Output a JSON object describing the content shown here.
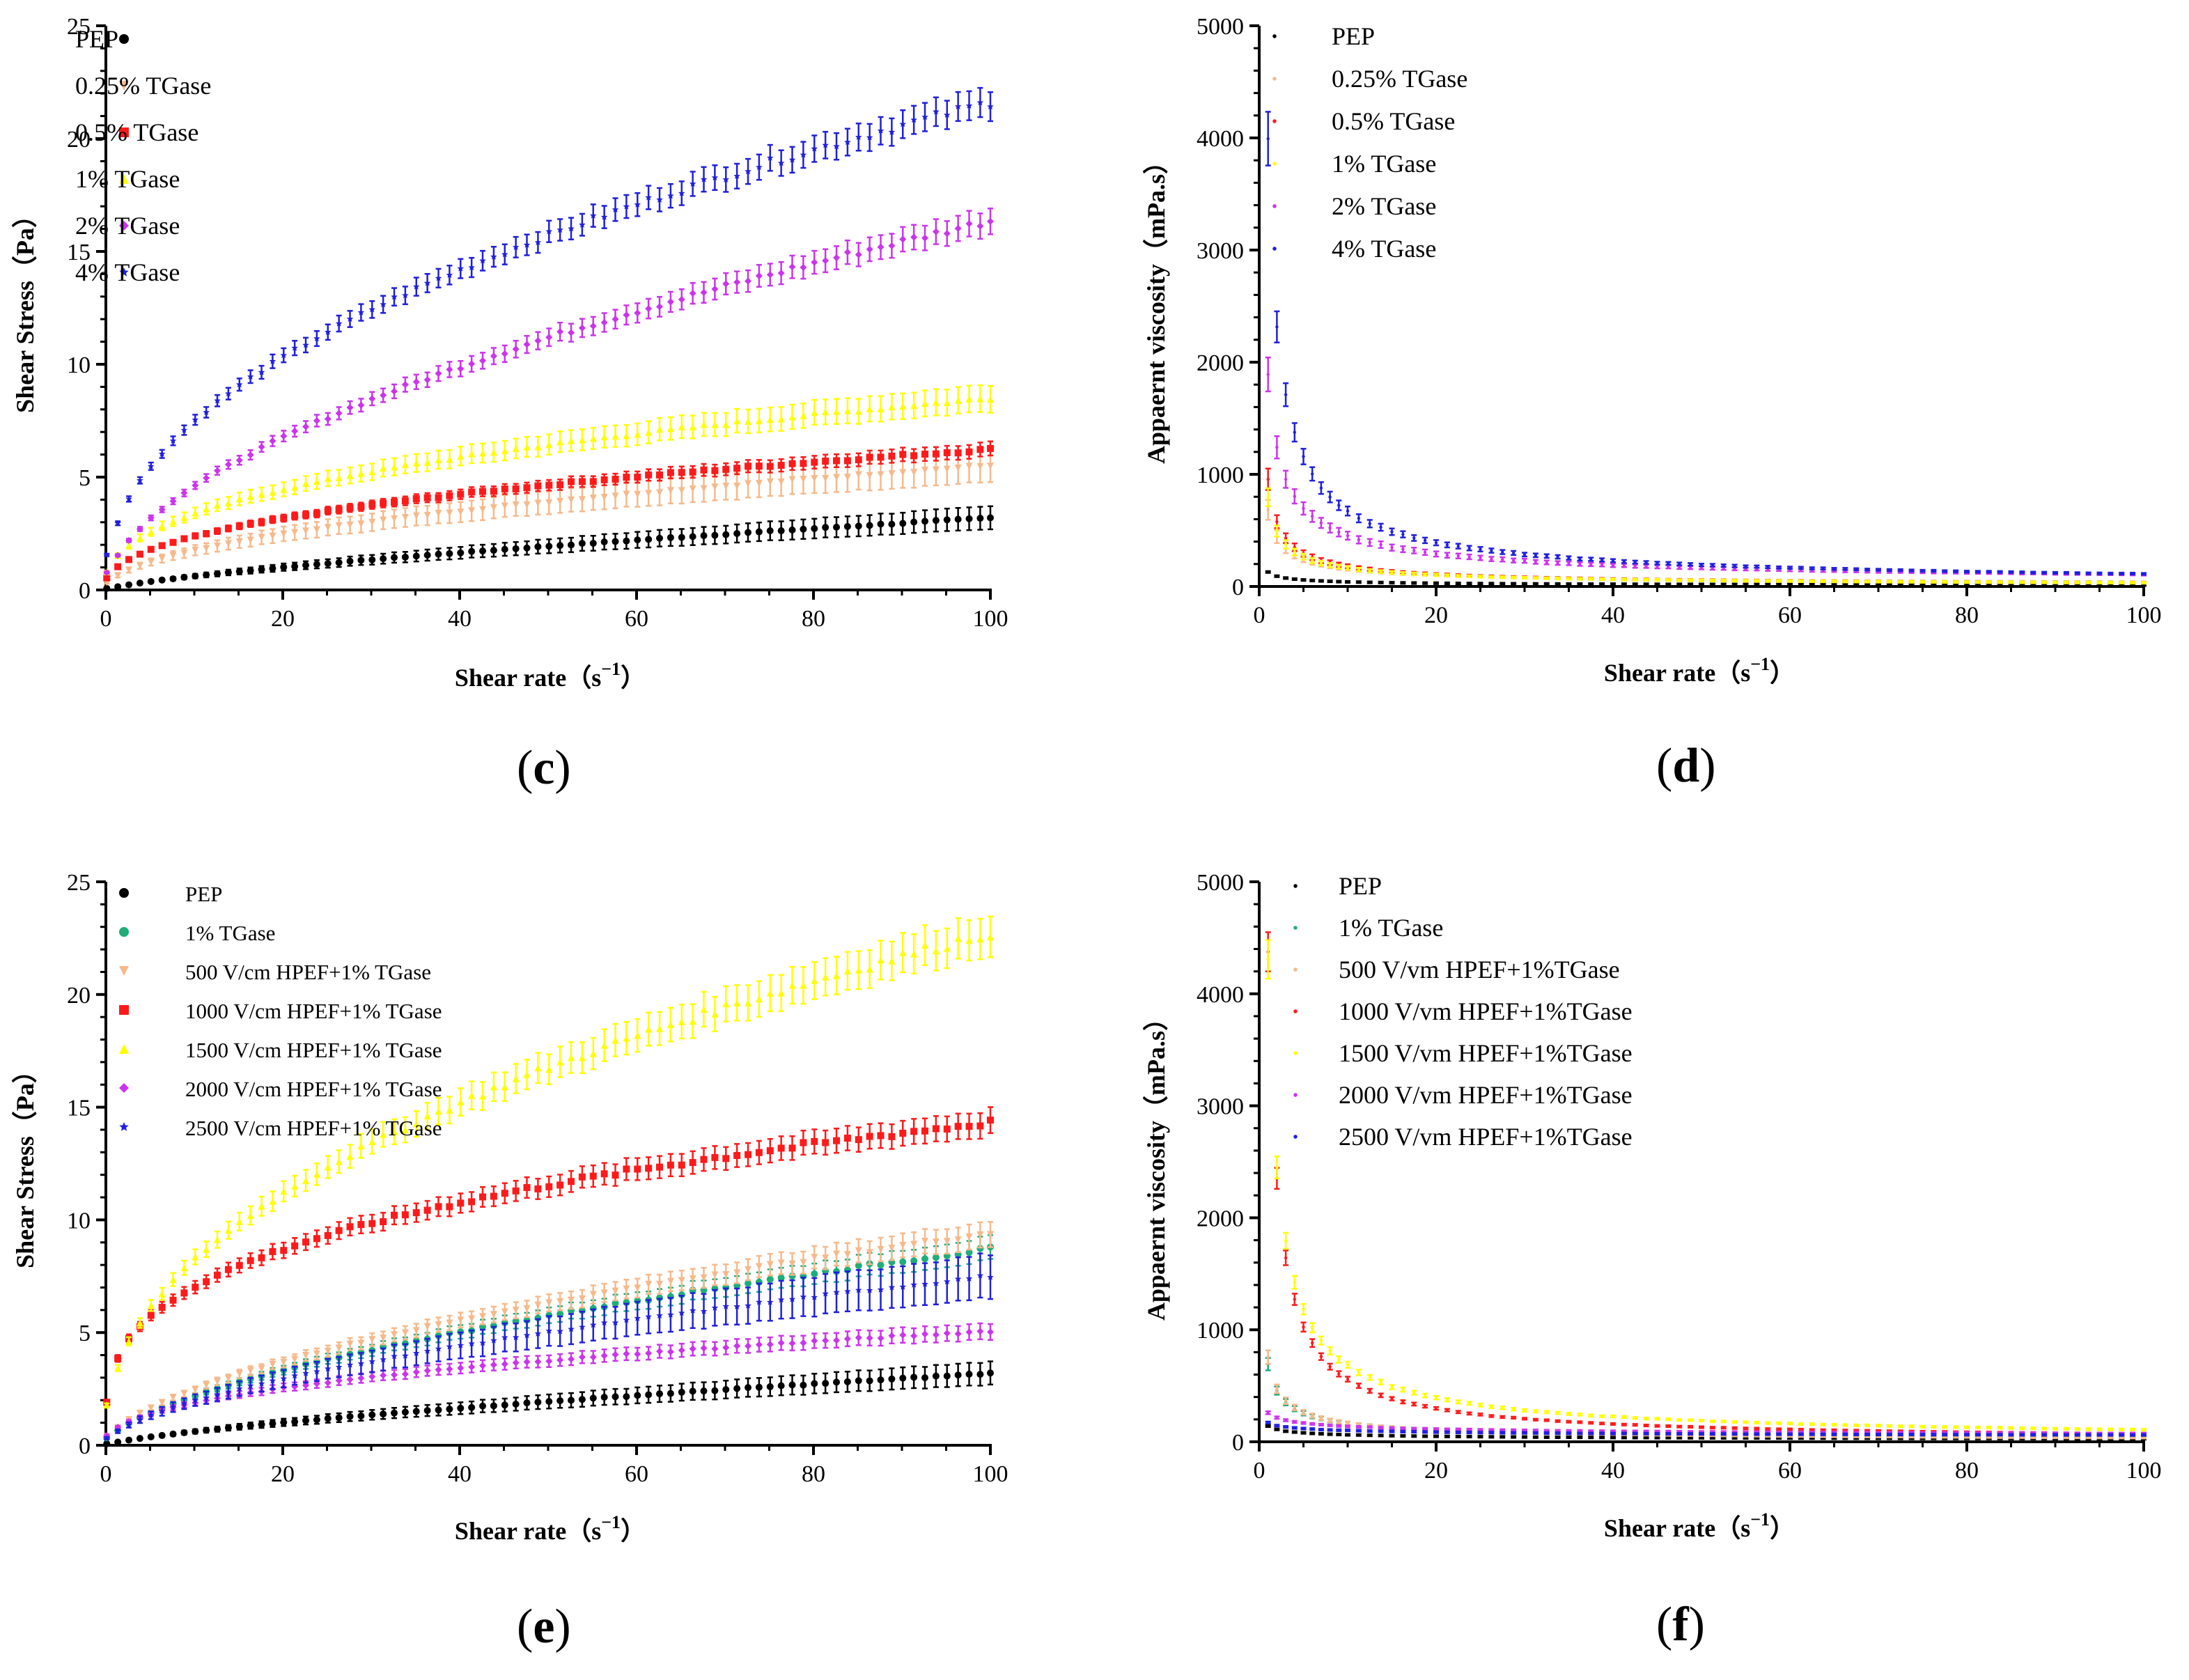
{
  "chart_data": [
    {
      "id": "c",
      "type": "scatter",
      "panel_label": "c",
      "xlabel": "Shear rate（s",
      "xlabel_sup": "−1",
      "xlabel_close": "）",
      "ylabel": "Shear Stress（Pa）",
      "xlim": [
        0,
        100
      ],
      "ylim": [
        0,
        25
      ],
      "xticks": [
        "0",
        "20",
        "40",
        "60",
        "80",
        "100"
      ],
      "yticks": [
        "0",
        "5",
        "10",
        "15",
        "20",
        "25"
      ],
      "legend_position": "top-left",
      "series": [
        {
          "name": "PEP",
          "color": "#000000",
          "marker": "circle",
          "model": "power",
          "a": 0.116,
          "n": 0.72,
          "err_frac": 0.16
        },
        {
          "name": "0.25% TGase",
          "color": "#f7b98a",
          "marker": "triangle-down",
          "model": "power",
          "a": 0.55,
          "n": 0.5,
          "err_frac": 0.13
        },
        {
          "name": "0.5% TGase",
          "color": "#ff1a1a",
          "marker": "square",
          "model": "power",
          "a": 0.9,
          "n": 0.42,
          "err_frac": 0.05
        },
        {
          "name": "1% TGase",
          "color": "#ffff00",
          "marker": "triangle-up",
          "model": "power",
          "a": 1.35,
          "n": 0.4,
          "err_frac": 0.07
        },
        {
          "name": "2% TGase",
          "color": "#cc33ee",
          "marker": "diamond",
          "model": "power",
          "a": 1.3,
          "n": 0.55,
          "err_frac": 0.035
        },
        {
          "name": "4% TGase",
          "color": "#1f1fe0",
          "marker": "star",
          "model": "power",
          "a": 2.6,
          "n": 0.46,
          "err_frac": 0.03
        }
      ]
    },
    {
      "id": "d",
      "type": "scatter",
      "panel_label": "d",
      "xlabel": "Shear rate（s",
      "xlabel_sup": "−1",
      "xlabel_close": "）",
      "ylabel": "Appaernt viscosity（mPa.s）",
      "xlim": [
        0,
        100
      ],
      "ylim": [
        0,
        5000
      ],
      "xticks": [
        "0",
        "20",
        "40",
        "60",
        "80",
        "100"
      ],
      "yticks": [
        "0",
        "1000",
        "2000",
        "3000",
        "4000",
        "5000"
      ],
      "legend_position": "top-left",
      "series": [
        {
          "name": "PEP",
          "color": "#000000",
          "marker": "dot",
          "model": "visc",
          "a": 130,
          "n": 0.6,
          "err_frac": 0.05
        },
        {
          "name": "0.25% TGase",
          "color": "#f7b98a",
          "marker": "dot",
          "model": "visc",
          "a": 680,
          "n": 0.5,
          "err_frac": 0.13
        },
        {
          "name": "0.5% TGase",
          "color": "#ff1a1a",
          "marker": "dot",
          "model": "visc",
          "a": 950,
          "n": 0.42,
          "err_frac": 0.1
        },
        {
          "name": "1% TGase",
          "color": "#ffff00",
          "marker": "dot",
          "model": "visc",
          "a": 800,
          "n": 0.45,
          "err_frac": 0.1
        },
        {
          "name": "2% TGase",
          "color": "#cc33ee",
          "marker": "dot",
          "model": "visc",
          "a": 1900,
          "n": 0.5,
          "err_frac": 0.08
        },
        {
          "name": "4% TGase",
          "color": "#1f1fe0",
          "marker": "dot",
          "model": "visc",
          "a": 4000,
          "n": 0.38,
          "err_frac": 0.06
        }
      ]
    },
    {
      "id": "e",
      "type": "scatter",
      "panel_label": "e",
      "xlabel": "Shear rate（s",
      "xlabel_sup": "−1",
      "xlabel_close": "）",
      "ylabel": "Shear Stress（Pa）",
      "xlim": [
        0,
        100
      ],
      "ylim": [
        0,
        25
      ],
      "xticks": [
        "0",
        "20",
        "40",
        "60",
        "80",
        "100"
      ],
      "yticks": [
        "0",
        "5",
        "10",
        "15",
        "20",
        "25"
      ],
      "legend_position": "top-left",
      "series": [
        {
          "name": "PEP",
          "color": "#000000",
          "marker": "circle",
          "model": "power",
          "a": 0.116,
          "n": 0.72,
          "err_frac": 0.16
        },
        {
          "name": "1% TGase",
          "color": "#1fae7a",
          "marker": "circle",
          "model": "power",
          "a": 0.55,
          "n": 0.6,
          "err_frac": 0.06
        },
        {
          "name": "500   V/cm HPEF+1% TGase",
          "color": "#f7b98a",
          "marker": "triangle-down",
          "model": "power",
          "a": 0.65,
          "n": 0.58,
          "err_frac": 0.06
        },
        {
          "name": "1000 V/cm HPEF+1% TGase",
          "color": "#ff1a1a",
          "marker": "square",
          "model": "power",
          "a": 3.2,
          "n": 0.32,
          "err_frac": 0.04
        },
        {
          "name": "1500 V/cm HPEF+1% TGase",
          "color": "#ffff00",
          "marker": "triangle-up",
          "model": "power",
          "a": 3.0,
          "n": 0.44,
          "err_frac": 0.04
        },
        {
          "name": "2000 V/cm HPEF+1% TGase",
          "color": "#cc33ee",
          "marker": "diamond",
          "model": "power",
          "a": 0.7,
          "n": 0.43,
          "err_frac": 0.07
        },
        {
          "name": "2500 V/cm HPEF+1% TGase",
          "color": "#1f1fe0",
          "marker": "star",
          "model": "power",
          "a": 0.52,
          "n": 0.58,
          "err_frac": 0.13
        }
      ]
    },
    {
      "id": "f",
      "type": "scatter",
      "panel_label": "f",
      "xlabel": "Shear rate（s",
      "xlabel_sup": "−1",
      "xlabel_close": "）",
      "ylabel": "Appaernt viscosity（mPa.s）",
      "xlim": [
        0,
        100
      ],
      "ylim": [
        0,
        5000
      ],
      "xticks": [
        "0",
        "20",
        "40",
        "60",
        "80",
        "100"
      ],
      "yticks": [
        "0",
        "1000",
        "2000",
        "3000",
        "4000",
        "5000"
      ],
      "legend_position": "top-left",
      "series": [
        {
          "name": "PEP",
          "color": "#000000",
          "marker": "dot",
          "model": "visc",
          "a": 140,
          "n": 0.72,
          "err_frac": 0.05
        },
        {
          "name": "1% TGase",
          "color": "#1fae7a",
          "marker": "dot",
          "model": "visc",
          "a": 700,
          "n": 0.5,
          "err_frac": 0.08
        },
        {
          "name": "500   V/vm HPEF+1%TGase",
          "color": "#f7b98a",
          "marker": "dot",
          "model": "visc",
          "a": 750,
          "n": 0.48,
          "err_frac": 0.08
        },
        {
          "name": "1000 V/vm HPEF+1%TGase",
          "color": "#ff1a1a",
          "marker": "dot",
          "model": "visc",
          "a": 4400,
          "n": 0.28,
          "err_frac": 0.04
        },
        {
          "name": "1500 V/vm HPEF+1%TGase",
          "color": "#ffff00",
          "marker": "dot",
          "model": "visc",
          "a": 4300,
          "n": 0.36,
          "err_frac": 0.04
        },
        {
          "name": "2000 V/vm HPEF+1%TGase",
          "color": "#cc33ee",
          "marker": "dot",
          "model": "visc",
          "a": 260,
          "n": 0.78,
          "err_frac": 0.05
        },
        {
          "name": "2500 V/vm HPEF+1%TGase",
          "color": "#1f1fe0",
          "marker": "dot",
          "model": "visc",
          "a": 170,
          "n": 0.82,
          "err_frac": 0.05
        }
      ]
    }
  ]
}
